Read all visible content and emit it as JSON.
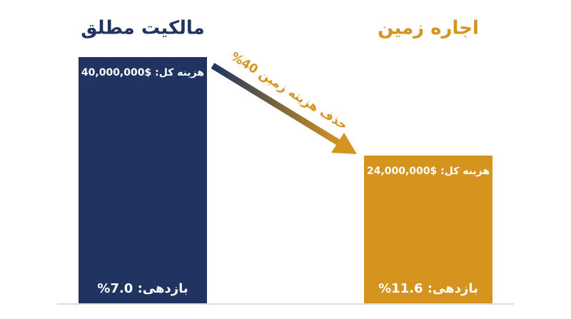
{
  "chart_data": {
    "type": "bar",
    "categories": [
      "مالکیت مطلق",
      "اجاره زمین"
    ],
    "values": [
      40000000,
      24000000
    ],
    "value_labels": [
      "هزینه کل: $40,000,000",
      "هزینه کل: $24,000,000"
    ],
    "colors": [
      "#1f3461",
      "#d4941e"
    ],
    "ylim": [
      0,
      40000000
    ],
    "yield": {
      "values": [
        7.0,
        11.6
      ],
      "value_labels": [
        "بازدهی: 7.0%",
        "بازدهی: 11.6%"
      ]
    },
    "annotation": "حذف هزینه زمین 40%"
  }
}
